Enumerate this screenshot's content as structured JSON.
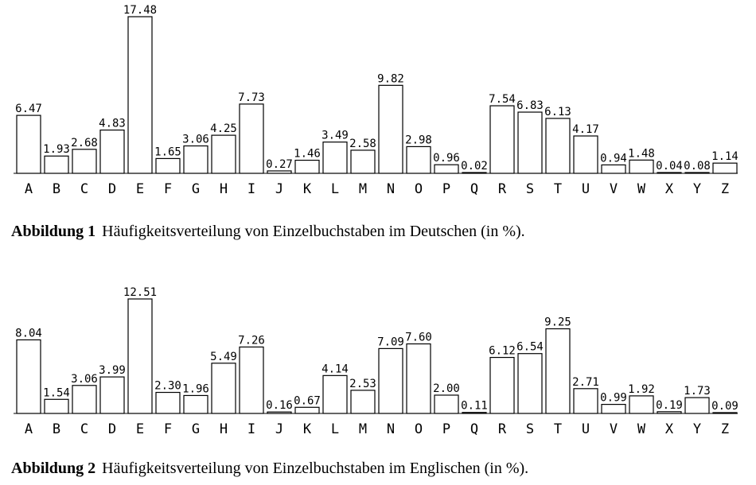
{
  "chart_data": [
    {
      "type": "bar",
      "categories": [
        "A",
        "B",
        "C",
        "D",
        "E",
        "F",
        "G",
        "H",
        "I",
        "J",
        "K",
        "L",
        "M",
        "N",
        "O",
        "P",
        "Q",
        "R",
        "S",
        "T",
        "U",
        "V",
        "W",
        "X",
        "Y",
        "Z"
      ],
      "values": [
        6.47,
        1.93,
        2.68,
        4.83,
        17.48,
        1.65,
        3.06,
        4.25,
        7.73,
        0.27,
        1.46,
        3.49,
        2.58,
        9.82,
        2.98,
        0.96,
        0.02,
        7.54,
        6.83,
        6.13,
        4.17,
        0.94,
        1.48,
        0.04,
        0.08,
        1.14
      ],
      "value_labels": [
        "6.47",
        "1.93",
        "2.68",
        "4.83",
        "17.48",
        "1.65",
        "3.06",
        "4.25",
        "7.73",
        "0.27",
        "1.46",
        "3.49",
        "2.58",
        "9.82",
        "2.98",
        "0.96",
        "0.02",
        "7.54",
        "6.83",
        "6.13",
        "4.17",
        "0.94",
        "1.48",
        "0.04",
        "0.08",
        "1.14"
      ],
      "ylim": [
        0,
        17.48
      ],
      "grid": false,
      "caption_label": "Abbildung 1",
      "caption_text": "Häufigkeitsverteilung von Einzelbuchstaben im Deutschen (in %)."
    },
    {
      "type": "bar",
      "categories": [
        "A",
        "B",
        "C",
        "D",
        "E",
        "F",
        "G",
        "H",
        "I",
        "J",
        "K",
        "L",
        "M",
        "N",
        "O",
        "P",
        "Q",
        "R",
        "S",
        "T",
        "U",
        "V",
        "W",
        "X",
        "Y",
        "Z"
      ],
      "values": [
        8.04,
        1.54,
        3.06,
        3.99,
        12.51,
        2.3,
        1.96,
        5.49,
        7.26,
        0.16,
        0.67,
        4.14,
        2.53,
        7.09,
        7.6,
        2.0,
        0.11,
        6.12,
        6.54,
        9.25,
        2.71,
        0.99,
        1.92,
        0.19,
        1.73,
        0.09
      ],
      "value_labels": [
        "8.04",
        "1.54",
        "3.06",
        "3.99",
        "12.51",
        "2.30",
        "1.96",
        "5.49",
        "7.26",
        "0.16",
        "0.67",
        "4.14",
        "2.53",
        "7.09",
        "7.60",
        "2.00",
        "0.11",
        "6.12",
        "6.54",
        "9.25",
        "2.71",
        "0.99",
        "1.92",
        "0.19",
        "1.73",
        "0.09"
      ],
      "ylim": [
        0,
        12.51
      ],
      "grid": false,
      "caption_label": "Abbildung 2",
      "caption_text": "Häufigkeitsverteilung von Einzelbuchstaben im Englischen (in %)."
    }
  ]
}
